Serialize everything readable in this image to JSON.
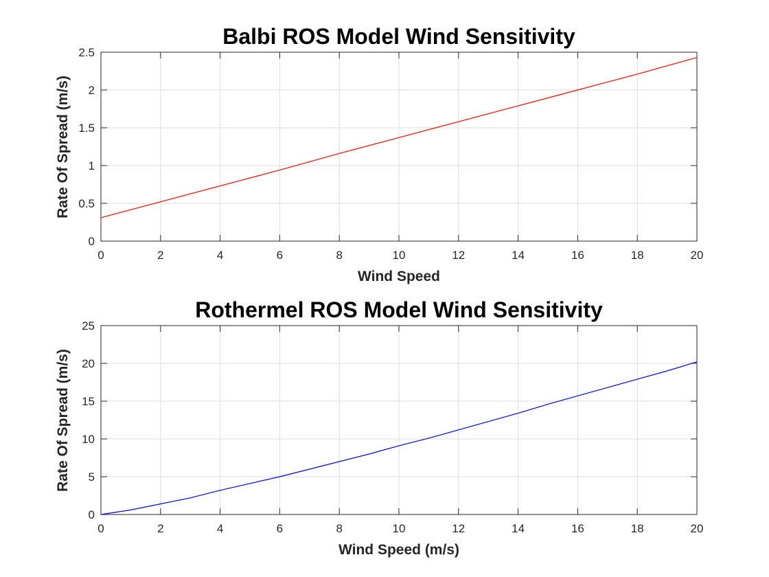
{
  "chart_data": [
    {
      "type": "line",
      "title": "Balbi ROS Model Wind Sensitivity",
      "xlabel": "Wind Speed",
      "ylabel": "Rate Of Spread (m/s)",
      "xlim": [
        0,
        20
      ],
      "ylim": [
        0,
        2.5
      ],
      "xticks": [
        0,
        2,
        4,
        6,
        8,
        10,
        12,
        14,
        16,
        18,
        20
      ],
      "yticks": [
        0,
        0.5,
        1,
        1.5,
        2,
        2.5
      ],
      "ytick_labels": [
        "0",
        "0.5",
        "1",
        "1.5",
        "2",
        "2.5"
      ],
      "grid": true,
      "series": [
        {
          "color": "#ff0000",
          "x": [
            0,
            2,
            4,
            6,
            8,
            10,
            12,
            14,
            16,
            18,
            20
          ],
          "y": [
            0.31,
            0.52,
            0.73,
            0.94,
            1.16,
            1.37,
            1.58,
            1.79,
            2.0,
            2.21,
            2.43
          ]
        }
      ]
    },
    {
      "type": "line",
      "title": "Rothermel ROS Model Wind Sensitivity",
      "xlabel": "Wind Speed (m/s)",
      "ylabel": "Rate Of Spread (m/s)",
      "xlim": [
        0,
        20
      ],
      "ylim": [
        0,
        25
      ],
      "xticks": [
        0,
        2,
        4,
        6,
        8,
        10,
        12,
        14,
        16,
        18,
        20
      ],
      "yticks": [
        0,
        5,
        10,
        15,
        20,
        25
      ],
      "ytick_labels": [
        "0",
        "5",
        "10",
        "15",
        "20",
        "25"
      ],
      "grid": true,
      "series": [
        {
          "color": "#0000ff",
          "x": [
            0,
            1,
            2,
            3,
            4,
            5,
            6,
            7,
            8,
            9,
            10,
            11,
            12,
            13,
            14,
            15,
            16,
            17,
            18,
            19,
            20
          ],
          "y": [
            0.0,
            0.6,
            1.4,
            2.2,
            3.2,
            4.1,
            5.0,
            6.0,
            7.0,
            8.0,
            9.1,
            10.1,
            11.2,
            12.3,
            13.4,
            14.6,
            15.7,
            16.8,
            17.9,
            19.0,
            20.2
          ]
        }
      ]
    }
  ]
}
